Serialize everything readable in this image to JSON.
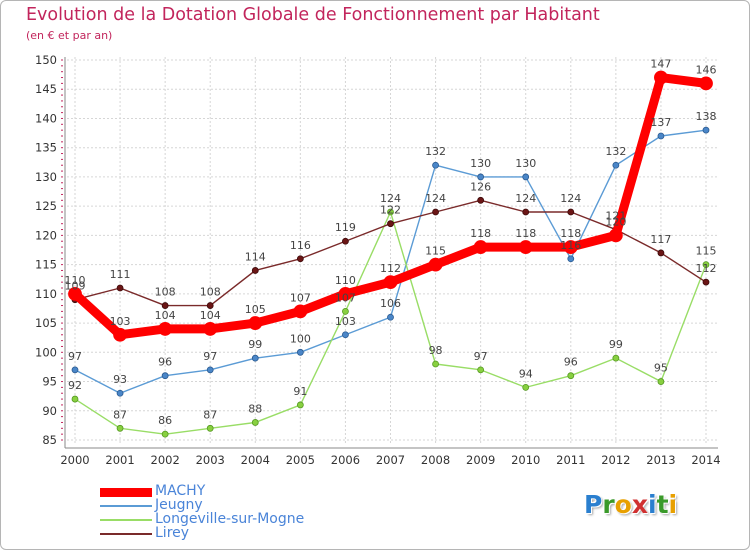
{
  "title": "Evolution de la Dotation Globale de Fonctionnement par Habitant",
  "subtitle": "(en € et par an)",
  "logo": {
    "text": "Proxiti",
    "letters": [
      "P",
      "r",
      "o",
      "x",
      "i",
      "t",
      "i"
    ],
    "colors": [
      "#2a7fcf",
      "#3a9a2a",
      "#e8a000",
      "#d03030",
      "#2a7fcf",
      "#3a9a2a",
      "#e8a000"
    ]
  },
  "chart_data": {
    "type": "line",
    "title": "Evolution de la Dotation Globale de Fonctionnement par Habitant",
    "ylabel": "(en € et par an)",
    "xlabel": "",
    "ylim": [
      85,
      150
    ],
    "yticks": [
      85,
      90,
      95,
      100,
      105,
      110,
      115,
      120,
      125,
      130,
      135,
      140,
      145,
      150
    ],
    "categories": [
      "2000",
      "2001",
      "2002",
      "2003",
      "2004",
      "2005",
      "2006",
      "2007",
      "2008",
      "2009",
      "2010",
      "2011",
      "2012",
      "2013",
      "2014"
    ],
    "grid": true,
    "legend_position": "bottom-left",
    "series": [
      {
        "name": "MACHY",
        "color": "#ff0000",
        "values": [
          110,
          103,
          104,
          104,
          105,
          107,
          110,
          112,
          115,
          118,
          118,
          118,
          120,
          147,
          146
        ]
      },
      {
        "name": "Jeugny",
        "color": "#5b9bd5",
        "values": [
          97,
          93,
          96,
          97,
          99,
          100,
          103,
          106,
          132,
          130,
          130,
          116,
          132,
          137,
          138
        ]
      },
      {
        "name": "Longeville-sur-Mogne",
        "color": "#99dd66",
        "values": [
          92,
          87,
          86,
          87,
          88,
          91,
          107,
          124,
          98,
          97,
          94,
          96,
          99,
          95,
          115
        ]
      },
      {
        "name": "Lirey",
        "color": "#7a2a2a",
        "values": [
          109,
          111,
          108,
          108,
          114,
          116,
          119,
          122,
          124,
          126,
          124,
          124,
          121,
          117,
          112
        ]
      }
    ],
    "data_labels": [
      [
        "110",
        "103",
        "104",
        "104",
        "105",
        "107",
        "110",
        "112",
        "115",
        "118",
        "118",
        "118",
        "120",
        "147",
        "146"
      ],
      [
        "97",
        "93",
        "96",
        "97",
        "99",
        "100",
        "103",
        "106",
        "132",
        "130",
        "130",
        "116",
        "132",
        "137",
        "138"
      ],
      [
        "92",
        "87",
        "86",
        "87",
        "88",
        "91",
        "107",
        "124",
        "98",
        "97",
        "94",
        "96",
        "99",
        "95",
        "115"
      ],
      [
        "109",
        "111",
        "108",
        "108",
        "114",
        "116",
        "119",
        "122",
        "124",
        "126",
        "124",
        "124",
        "121",
        "117",
        "112"
      ]
    ]
  }
}
